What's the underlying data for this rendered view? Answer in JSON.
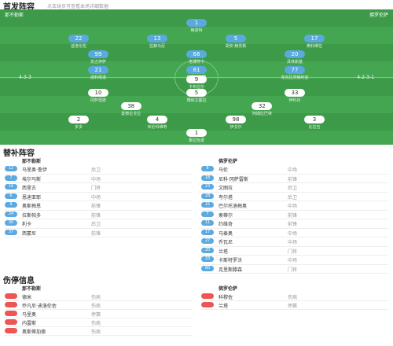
{
  "header": {
    "title": "首发阵容",
    "subtitle": "点击球员可查看本场详细数据"
  },
  "pitch": {
    "home": {
      "name": "那不勒斯",
      "formation": "4-3-3",
      "rows": [
        [
          {
            "number": "1",
            "name": "梅雷特"
          }
        ],
        [
          {
            "number": "22",
            "name": "迪洛伦佐"
          },
          {
            "number": "13",
            "name": "拉赫马尼"
          },
          {
            "number": "5",
            "name": "胡安·赫苏斯"
          },
          {
            "number": "17",
            "name": "奥利维拉"
          }
        ],
        [
          {
            "number": "99",
            "name": "安古伊萨"
          },
          {
            "number": "68",
            "name": "洛博特卡"
          },
          {
            "number": "20",
            "name": "泽林斯基"
          }
        ],
        [
          {
            "number": "21",
            "name": "波利塔诺"
          },
          {
            "number": "81",
            "name": "拉斯帕多里"
          },
          {
            "number": "77",
            "name": "克瓦拉茨赫利亚"
          }
        ]
      ]
    },
    "away": {
      "name": "佛罗伦萨",
      "formation": "4-2-3-1",
      "rows": [
        [
          {
            "number": "1",
            "name": "泰拉恰诺"
          }
        ],
        [
          {
            "number": "2",
            "name": "多多"
          },
          {
            "number": "4",
            "name": "米伦科维奇"
          },
          {
            "number": "98",
            "name": "伊戈尔"
          },
          {
            "number": "3",
            "name": "比拉吉"
          }
        ],
        [
          {
            "number": "38",
            "name": "曼德拉戈拉"
          },
          {
            "number": "32",
            "name": "阿姆拉巴特"
          }
        ],
        [
          {
            "number": "10",
            "name": "冈萨雷斯"
          },
          {
            "number": "5",
            "name": "博纳文图拉"
          },
          {
            "number": "33",
            "name": "伊科内"
          }
        ],
        [
          {
            "number": "9",
            "name": "卡布拉尔"
          }
        ]
      ]
    }
  },
  "subs": {
    "title": "替补阵容",
    "home": {
      "team": "那不勒斯",
      "players": [
        {
          "number": "12",
          "name": "马里奥·鲁伊",
          "position": "后卫"
        },
        {
          "number": "7",
          "name": "埃尔马斯",
          "position": "中场"
        },
        {
          "number": "16",
          "name": "西里古",
          "position": "门将"
        },
        {
          "number": "6",
          "name": "恩迪亚耶",
          "position": "中场"
        },
        {
          "number": "9",
          "name": "奥斯梅恩",
          "position": "前锋"
        },
        {
          "number": "24",
          "name": "拉斯帕多",
          "position": "前锋"
        },
        {
          "number": "30",
          "name": "利卡",
          "position": "后卫"
        },
        {
          "number": "37",
          "name": "西蒙尼",
          "position": "前锋"
        }
      ]
    },
    "away": {
      "team": "佛罗伦萨",
      "players": [
        {
          "number": "8",
          "name": "马伦",
          "position": "中场"
        },
        {
          "number": "18",
          "name": "尼科·冈萨雷斯",
          "position": "前锋"
        },
        {
          "number": "23",
          "name": "文图拉",
          "position": "后卫"
        },
        {
          "number": "28",
          "name": "夸尔塔",
          "position": "后卫"
        },
        {
          "number": "15",
          "name": "巴尔托洛梅奥",
          "position": "中场"
        },
        {
          "number": "7",
          "name": "索蒂尔",
          "position": "前锋"
        },
        {
          "number": "11",
          "name": "约维奇",
          "position": "前锋"
        },
        {
          "number": "17",
          "name": "马泰奥",
          "position": "中场"
        },
        {
          "number": "27",
          "name": "乔瓦尼",
          "position": "中场"
        },
        {
          "number": "20",
          "name": "兰塔",
          "position": "门将"
        },
        {
          "number": "33",
          "name": "卡斯特罗沃",
          "position": "中场"
        },
        {
          "number": "60",
          "name": "克里斯滕森",
          "position": "门将"
        }
      ]
    }
  },
  "injuries": {
    "title": "伤停信息",
    "home": {
      "team": "那不勒斯",
      "players": [
        {
          "name": "德米",
          "reason": "伤病"
        },
        {
          "name": "乔凡尼·迪洛伦佐",
          "reason": "伤病"
        },
        {
          "name": "马里奥",
          "reason": "停赛"
        },
        {
          "name": "内雷斯",
          "reason": "伤病"
        },
        {
          "name": "奥斯蒂加德",
          "reason": "伤病"
        }
      ]
    },
    "away": {
      "team": "佛罗伦萨",
      "players": [
        {
          "name": "科穆佐",
          "reason": "伤病"
        },
        {
          "name": "兰塔",
          "reason": "停赛"
        }
      ]
    }
  }
}
